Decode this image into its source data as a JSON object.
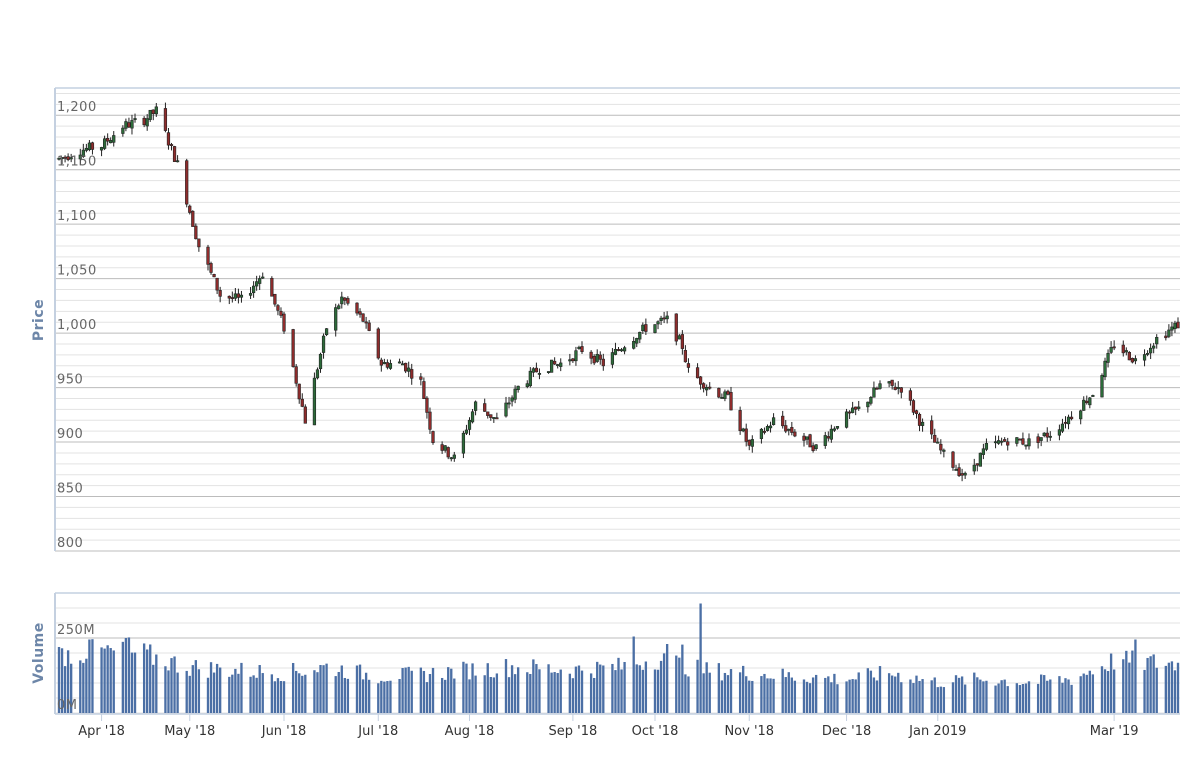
{
  "chart_data": {
    "type": "candlestick",
    "panels": [
      {
        "name": "price",
        "ylabel": "Price",
        "ylim": [
          800,
          1225
        ],
        "yticks": [
          800,
          850,
          900,
          950,
          1000,
          1050,
          1100,
          1150,
          1200
        ],
        "ytick_labels": [
          "800",
          "850",
          "900",
          "950",
          "1,000",
          "1,050",
          "1,100",
          "1,150",
          "1,200"
        ]
      },
      {
        "name": "volume",
        "ylabel": "Volume",
        "ylim": [
          0,
          400
        ],
        "yticks": [
          0,
          250
        ],
        "ytick_labels": [
          "0M",
          "250M"
        ],
        "units": "M"
      }
    ],
    "x_range": [
      "2018-03-19",
      "2019-03-22"
    ],
    "xticks": [
      {
        "date": "2018-04-02",
        "label": "Apr '18"
      },
      {
        "date": "2018-05-01",
        "label": "May '18"
      },
      {
        "date": "2018-06-01",
        "label": "Jun '18"
      },
      {
        "date": "2018-07-02",
        "label": "Jul '18"
      },
      {
        "date": "2018-08-01",
        "label": "Aug '18"
      },
      {
        "date": "2018-09-04",
        "label": "Sep '18"
      },
      {
        "date": "2018-10-01",
        "label": "Oct '18"
      },
      {
        "date": "2018-11-01",
        "label": "Nov '18"
      },
      {
        "date": "2018-12-03",
        "label": "Dec '18"
      },
      {
        "date": "2019-01-02",
        "label": "Jan 2019"
      },
      {
        "date": "2019-03-01",
        "label": "Mar '19"
      }
    ],
    "price_anchors": [
      [
        "2018-03-19",
        1160
      ],
      [
        "2018-03-26",
        1168
      ],
      [
        "2018-04-02",
        1172
      ],
      [
        "2018-04-09",
        1190
      ],
      [
        "2018-04-16",
        1196
      ],
      [
        "2018-04-20",
        1204
      ],
      [
        "2018-04-27",
        1155
      ],
      [
        "2018-05-04",
        1080
      ],
      [
        "2018-05-11",
        1035
      ],
      [
        "2018-05-18",
        1030
      ],
      [
        "2018-05-25",
        1055
      ],
      [
        "2018-06-01",
        1005
      ],
      [
        "2018-06-08",
        920
      ],
      [
        "2018-06-15",
        1005
      ],
      [
        "2018-06-20",
        1032
      ],
      [
        "2018-06-27",
        1012
      ],
      [
        "2018-07-03",
        972
      ],
      [
        "2018-07-10",
        972
      ],
      [
        "2018-07-16",
        955
      ],
      [
        "2018-07-20",
        902
      ],
      [
        "2018-07-27",
        885
      ],
      [
        "2018-08-03",
        935
      ],
      [
        "2018-08-10",
        920
      ],
      [
        "2018-08-17",
        950
      ],
      [
        "2018-08-24",
        968
      ],
      [
        "2018-08-31",
        972
      ],
      [
        "2018-09-07",
        985
      ],
      [
        "2018-09-14",
        972
      ],
      [
        "2018-09-21",
        990
      ],
      [
        "2018-09-28",
        1005
      ],
      [
        "2018-10-05",
        1012
      ],
      [
        "2018-10-10",
        988
      ],
      [
        "2018-10-12",
        965
      ],
      [
        "2018-10-19",
        950
      ],
      [
        "2018-10-25",
        940
      ],
      [
        "2018-11-01",
        895
      ],
      [
        "2018-11-09",
        920
      ],
      [
        "2018-11-16",
        908
      ],
      [
        "2018-11-23",
        895
      ],
      [
        "2018-11-30",
        918
      ],
      [
        "2018-12-07",
        930
      ],
      [
        "2018-12-14",
        952
      ],
      [
        "2018-12-21",
        950
      ],
      [
        "2018-12-28",
        915
      ],
      [
        "2019-01-04",
        888
      ],
      [
        "2019-01-11",
        868
      ],
      [
        "2019-01-18",
        895
      ],
      [
        "2019-01-25",
        902
      ],
      [
        "2019-02-01",
        900
      ],
      [
        "2019-02-08",
        908
      ],
      [
        "2019-02-15",
        925
      ],
      [
        "2019-02-22",
        945
      ],
      [
        "2019-03-01",
        990
      ],
      [
        "2019-03-08",
        975
      ],
      [
        "2019-03-15",
        995
      ],
      [
        "2019-03-22",
        1008
      ]
    ],
    "volume_anchors": [
      [
        "2018-03-19",
        190
      ],
      [
        "2018-04-02",
        200
      ],
      [
        "2018-04-16",
        190
      ],
      [
        "2018-04-30",
        150
      ],
      [
        "2018-05-14",
        140
      ],
      [
        "2018-06-01",
        130
      ],
      [
        "2018-06-15",
        150
      ],
      [
        "2018-07-02",
        120
      ],
      [
        "2018-07-16",
        125
      ],
      [
        "2018-08-01",
        140
      ],
      [
        "2018-08-15",
        150
      ],
      [
        "2018-09-04",
        140
      ],
      [
        "2018-09-20",
        150
      ],
      [
        "2018-10-01",
        180
      ],
      [
        "2018-10-16",
        140
      ],
      [
        "2018-11-01",
        130
      ],
      [
        "2018-11-15",
        120
      ],
      [
        "2018-12-03",
        110
      ],
      [
        "2018-12-17",
        130
      ],
      [
        "2019-01-02",
        100
      ],
      [
        "2019-01-16",
        110
      ],
      [
        "2019-02-01",
        100
      ],
      [
        "2019-02-15",
        110
      ],
      [
        "2019-03-01",
        170
      ],
      [
        "2019-03-22",
        160
      ]
    ],
    "volume_spikes": [
      [
        "2018-03-29",
        245
      ],
      [
        "2018-04-10",
        250
      ],
      [
        "2018-04-11",
        252
      ],
      [
        "2018-09-24",
        255
      ],
      [
        "2018-10-05",
        230
      ],
      [
        "2018-10-10",
        228
      ],
      [
        "2018-10-16",
        365
      ],
      [
        "2019-03-08",
        245
      ]
    ],
    "colors": {
      "up": "#2d6b3a",
      "down": "#8f2c2c",
      "wick": "#222222",
      "volume": "#4b6fa5",
      "grid": "#d7d7d7",
      "axis": "#c4d0e0"
    },
    "grid": true
  }
}
